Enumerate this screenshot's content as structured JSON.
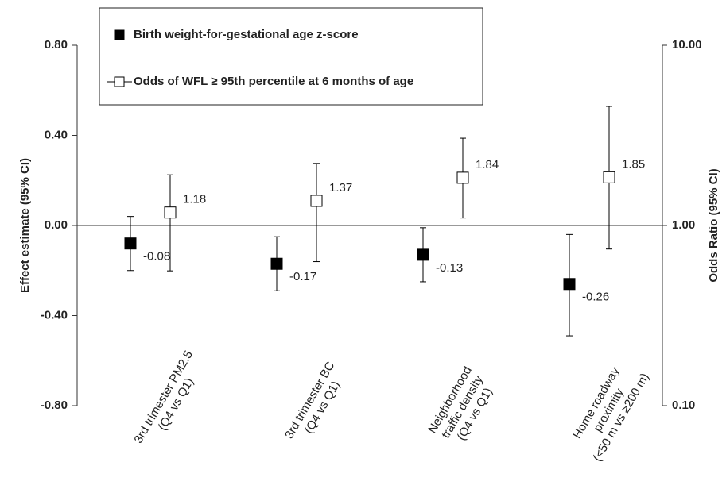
{
  "chart_data": {
    "type": "errorbar",
    "categories": [
      [
        "3rd trimester PM2.5",
        "(Q4 vs Q1)"
      ],
      [
        "3rd trimester BC",
        "(Q4 vs Q1)"
      ],
      [
        "Neighborhood",
        "traffic density",
        "(Q4 vs Q1)"
      ],
      [
        "Home roadway",
        "proximity",
        "(<50 m vs ≥200 m)"
      ]
    ],
    "ylabel": "Effect estimate (95% CI)",
    "y2label": "Odds Ratio (95% CI)",
    "ylim": [
      -0.8,
      0.8
    ],
    "yticks": [
      {
        "value": -0.8,
        "label": "-0.80"
      },
      {
        "value": -0.4,
        "label": "-0.40"
      },
      {
        "value": 0,
        "label": "0.00"
      },
      {
        "value": 0.4,
        "label": "0.40"
      },
      {
        "value": 0.8,
        "label": "0.80"
      }
    ],
    "y2lim": [
      0.1,
      10
    ],
    "y2ticks": [
      {
        "value": 0.1,
        "label": "0.10"
      },
      {
        "value": 1,
        "label": "1.00"
      },
      {
        "value": 10,
        "label": "10.00"
      }
    ],
    "y2scale": "log",
    "legend": "top-left",
    "series": [
      {
        "name": "Birth weight-for-gestational age z-score",
        "marker": "filled",
        "color": "#000000",
        "values": [
          -0.08,
          -0.17,
          -0.13,
          -0.26
        ],
        "lower": [
          -0.2,
          -0.29,
          -0.25,
          -0.49
        ],
        "upper": [
          0.04,
          -0.05,
          -0.01,
          -0.04
        ]
      },
      {
        "name": "Odds of WFL ≥ 95th percentile at 6 months of age",
        "marker": "open",
        "color": "#000000",
        "axis": "y2",
        "values": [
          1.18,
          1.37,
          1.84,
          1.85
        ],
        "lower": [
          0.56,
          0.63,
          1.1,
          0.74
        ],
        "upper": [
          1.91,
          2.21,
          3.05,
          4.58
        ]
      }
    ]
  }
}
